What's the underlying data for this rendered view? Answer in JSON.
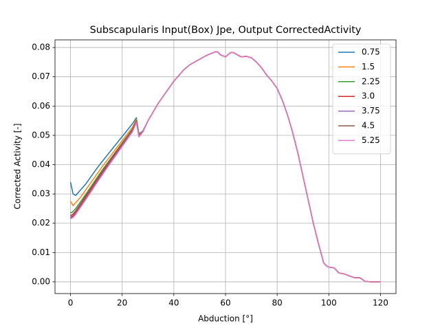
{
  "chart_data": {
    "type": "line",
    "title": "Subscapularis Input(Box) Jpe, Output CorrectedActivity",
    "xlabel": "Abduction [°]",
    "ylabel": "Corrected Activity [-]",
    "x": [
      0,
      1,
      2,
      4,
      6,
      8,
      10,
      12,
      14,
      16,
      18,
      20,
      22,
      24,
      25.5,
      26.5,
      28,
      30,
      32,
      34,
      36,
      38,
      40,
      42,
      44,
      46,
      48,
      50,
      52,
      54,
      56,
      57,
      58,
      60,
      62,
      63,
      64,
      66,
      68,
      70,
      72,
      74,
      76,
      78,
      80,
      82,
      84,
      86,
      88,
      90,
      92,
      94,
      96,
      98,
      99,
      100,
      102,
      104,
      106,
      108,
      110,
      112,
      114,
      116,
      118,
      120
    ],
    "series": [
      {
        "name": "0.75",
        "color": "#1f77b4",
        "values": [
          0.034,
          0.03,
          0.0295,
          0.0315,
          0.0335,
          0.036,
          0.0385,
          0.0408,
          0.043,
          0.0452,
          0.0474,
          0.0496,
          0.0518,
          0.054,
          0.056,
          0.0505,
          0.0515,
          0.055,
          0.058,
          0.061,
          0.0635,
          0.066,
          0.0685,
          0.0705,
          0.0725,
          0.074,
          0.075,
          0.076,
          0.077,
          0.0778,
          0.0785,
          0.0785,
          0.0775,
          0.0768,
          0.0783,
          0.0783,
          0.0778,
          0.0768,
          0.077,
          0.0765,
          0.075,
          0.073,
          0.0705,
          0.0685,
          0.066,
          0.062,
          0.057,
          0.051,
          0.044,
          0.036,
          0.028,
          0.02,
          0.013,
          0.0065,
          0.0055,
          0.005,
          0.0048,
          0.003,
          0.0027,
          0.002,
          0.0014,
          0.0014,
          0.0002,
          0.0,
          0.0,
          0.0
        ]
      },
      {
        "name": "1.5",
        "color": "#ff7f0e",
        "values": [
          0.0275,
          0.026,
          0.027,
          0.029,
          0.0315,
          0.034,
          0.0365,
          0.039,
          0.0413,
          0.0436,
          0.0459,
          0.0482,
          0.0505,
          0.0528,
          0.0555,
          0.0502,
          0.0513,
          0.055,
          0.058,
          0.061,
          0.0635,
          0.066,
          0.0685,
          0.0705,
          0.0725,
          0.074,
          0.075,
          0.076,
          0.077,
          0.0778,
          0.0785,
          0.0785,
          0.0775,
          0.0768,
          0.0783,
          0.0783,
          0.0778,
          0.0768,
          0.077,
          0.0765,
          0.075,
          0.073,
          0.0705,
          0.0685,
          0.066,
          0.062,
          0.057,
          0.051,
          0.044,
          0.036,
          0.028,
          0.02,
          0.013,
          0.0065,
          0.0055,
          0.005,
          0.0048,
          0.003,
          0.0027,
          0.002,
          0.0014,
          0.0014,
          0.0002,
          0.0,
          0.0,
          0.0
        ]
      },
      {
        "name": "2.25",
        "color": "#2ca02c",
        "values": [
          0.0235,
          0.024,
          0.025,
          0.0275,
          0.03,
          0.0326,
          0.0352,
          0.0378,
          0.0402,
          0.0426,
          0.045,
          0.0474,
          0.0498,
          0.0522,
          0.055,
          0.05,
          0.0512,
          0.055,
          0.058,
          0.061,
          0.0635,
          0.066,
          0.0685,
          0.0705,
          0.0725,
          0.074,
          0.075,
          0.076,
          0.077,
          0.0778,
          0.0785,
          0.0785,
          0.0775,
          0.0768,
          0.0783,
          0.0783,
          0.0778,
          0.0768,
          0.077,
          0.0765,
          0.075,
          0.073,
          0.0705,
          0.0685,
          0.066,
          0.062,
          0.057,
          0.051,
          0.044,
          0.036,
          0.028,
          0.02,
          0.013,
          0.0065,
          0.0055,
          0.005,
          0.0048,
          0.003,
          0.0027,
          0.002,
          0.0014,
          0.0014,
          0.0002,
          0.0,
          0.0,
          0.0
        ]
      },
      {
        "name": "3.0",
        "color": "#d62728",
        "values": [
          0.0225,
          0.0232,
          0.0242,
          0.0268,
          0.0294,
          0.032,
          0.0346,
          0.0372,
          0.0397,
          0.0422,
          0.0447,
          0.0471,
          0.0495,
          0.0519,
          0.0548,
          0.0498,
          0.0512,
          0.055,
          0.058,
          0.061,
          0.0635,
          0.066,
          0.0685,
          0.0705,
          0.0725,
          0.074,
          0.075,
          0.076,
          0.077,
          0.0778,
          0.0785,
          0.0785,
          0.0775,
          0.0768,
          0.0783,
          0.0783,
          0.0778,
          0.0768,
          0.077,
          0.0765,
          0.075,
          0.073,
          0.0705,
          0.0685,
          0.066,
          0.062,
          0.057,
          0.051,
          0.044,
          0.036,
          0.028,
          0.02,
          0.013,
          0.0065,
          0.0055,
          0.005,
          0.0048,
          0.003,
          0.0027,
          0.002,
          0.0014,
          0.0014,
          0.0002,
          0.0,
          0.0,
          0.0
        ]
      },
      {
        "name": "3.75",
        "color": "#9467bd",
        "values": [
          0.022,
          0.0227,
          0.0237,
          0.0263,
          0.0289,
          0.0315,
          0.0341,
          0.0367,
          0.0393,
          0.0418,
          0.0443,
          0.0468,
          0.0493,
          0.0517,
          0.0546,
          0.0496,
          0.0512,
          0.055,
          0.058,
          0.061,
          0.0635,
          0.066,
          0.0685,
          0.0705,
          0.0725,
          0.074,
          0.075,
          0.076,
          0.077,
          0.0778,
          0.0785,
          0.0785,
          0.0775,
          0.0768,
          0.0783,
          0.0783,
          0.0778,
          0.0768,
          0.077,
          0.0765,
          0.075,
          0.073,
          0.0705,
          0.0685,
          0.066,
          0.062,
          0.057,
          0.051,
          0.044,
          0.036,
          0.028,
          0.02,
          0.013,
          0.0065,
          0.0055,
          0.005,
          0.0048,
          0.003,
          0.0027,
          0.002,
          0.0014,
          0.0014,
          0.0002,
          0.0,
          0.0,
          0.0
        ]
      },
      {
        "name": "4.5",
        "color": "#8c564b",
        "values": [
          0.0218,
          0.0224,
          0.0234,
          0.026,
          0.0286,
          0.0312,
          0.0338,
          0.0364,
          0.039,
          0.0415,
          0.044,
          0.0465,
          0.049,
          0.0515,
          0.0545,
          0.0495,
          0.0512,
          0.055,
          0.058,
          0.061,
          0.0635,
          0.066,
          0.0685,
          0.0705,
          0.0725,
          0.074,
          0.075,
          0.076,
          0.077,
          0.0778,
          0.0785,
          0.0785,
          0.0775,
          0.0768,
          0.0783,
          0.0783,
          0.0778,
          0.0768,
          0.077,
          0.0765,
          0.075,
          0.073,
          0.0705,
          0.0685,
          0.066,
          0.062,
          0.057,
          0.051,
          0.044,
          0.036,
          0.028,
          0.02,
          0.013,
          0.0065,
          0.0055,
          0.005,
          0.0048,
          0.003,
          0.0027,
          0.002,
          0.0014,
          0.0014,
          0.0002,
          0.0,
          0.0,
          0.0
        ]
      },
      {
        "name": "5.25",
        "color": "#e377c2",
        "values": [
          0.0215,
          0.022,
          0.023,
          0.0256,
          0.0282,
          0.0308,
          0.0335,
          0.0361,
          0.0387,
          0.0412,
          0.0437,
          0.0462,
          0.0487,
          0.0512,
          0.0545,
          0.0495,
          0.0512,
          0.055,
          0.058,
          0.061,
          0.0635,
          0.066,
          0.0685,
          0.0705,
          0.0725,
          0.074,
          0.075,
          0.076,
          0.077,
          0.0778,
          0.0785,
          0.0785,
          0.0775,
          0.0768,
          0.0783,
          0.0783,
          0.0778,
          0.0768,
          0.077,
          0.0765,
          0.075,
          0.073,
          0.0705,
          0.0685,
          0.066,
          0.062,
          0.057,
          0.051,
          0.044,
          0.036,
          0.028,
          0.02,
          0.013,
          0.0065,
          0.0055,
          0.005,
          0.0048,
          0.003,
          0.0027,
          0.002,
          0.0014,
          0.0014,
          0.0002,
          0.0,
          0.0,
          0.0
        ]
      }
    ],
    "xlim": [
      -6,
      126
    ],
    "ylim": [
      -0.004,
      0.0826
    ],
    "xticks": [
      0,
      20,
      40,
      60,
      80,
      100,
      120
    ],
    "yticks": [
      {
        "value": 0,
        "label": "0.00"
      },
      {
        "value": 0.01,
        "label": "0.01"
      },
      {
        "value": 0.02,
        "label": "0.02"
      },
      {
        "value": 0.03,
        "label": "0.03"
      },
      {
        "value": 0.04,
        "label": "0.04"
      },
      {
        "value": 0.05,
        "label": "0.05"
      },
      {
        "value": 0.06,
        "label": "0.06"
      },
      {
        "value": 0.07,
        "label": "0.07"
      },
      {
        "value": 0.08,
        "label": "0.08"
      }
    ],
    "grid": true,
    "legend": "upper right"
  }
}
